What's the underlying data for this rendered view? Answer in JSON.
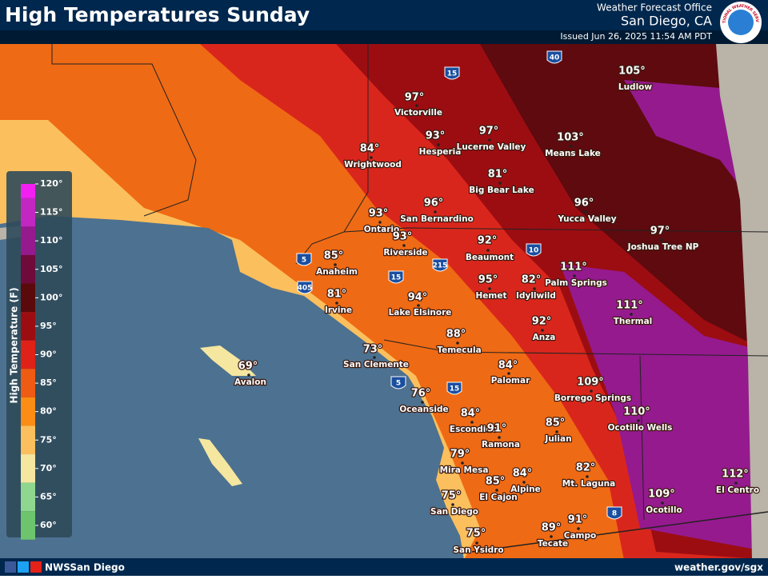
{
  "header": {
    "title": "High Temperatures Sunday",
    "office": "Weather Forecast Office",
    "location": "San Diego, CA",
    "issued": "Issued Jun 26, 2025 11:54 AM PDT",
    "logo": "NATIONAL WEATHER SERVICE"
  },
  "legend": {
    "title": "High Temperature (F)",
    "ticks": [
      "120°",
      "115°",
      "110°",
      "105°",
      "100°",
      "95°",
      "90°",
      "85°",
      "80°",
      "75°",
      "70°",
      "65°",
      "60°"
    ],
    "colors": [
      "#f21ff2",
      "#c227c2",
      "#951a8e",
      "#6e0b3a",
      "#5a0a0a",
      "#9c0d12",
      "#de2218",
      "#ef5b12",
      "#fb8c14",
      "#fbbf5d",
      "#f5e6a0",
      "#8fd68f",
      "#6cc46c"
    ]
  },
  "cities": [
    {
      "name": "Victorville",
      "temp": "97°"
    },
    {
      "name": "Hesperia",
      "temp": "93°"
    },
    {
      "name": "Lucerne Valley",
      "temp": "97°"
    },
    {
      "name": "Means Lake",
      "temp": "103°"
    },
    {
      "name": "Ludlow",
      "temp": "105°"
    },
    {
      "name": "Wrightwood",
      "temp": "84°"
    },
    {
      "name": "Big Bear Lake",
      "temp": "81°"
    },
    {
      "name": "San Bernardino",
      "temp": "96°"
    },
    {
      "name": "Yucca Valley",
      "temp": "96°"
    },
    {
      "name": "Ontario",
      "temp": "93°"
    },
    {
      "name": "Riverside",
      "temp": "93°"
    },
    {
      "name": "Beaumont",
      "temp": "92°"
    },
    {
      "name": "Joshua Tree NP",
      "temp": "97°"
    },
    {
      "name": "Anaheim",
      "temp": "85°"
    },
    {
      "name": "Palm Springs",
      "temp": "111°"
    },
    {
      "name": "Hemet",
      "temp": "95°"
    },
    {
      "name": "Idyllwild",
      "temp": "82°"
    },
    {
      "name": "Irvine",
      "temp": "81°"
    },
    {
      "name": "Lake Elsinore",
      "temp": "94°"
    },
    {
      "name": "Thermal",
      "temp": "111°"
    },
    {
      "name": "Anza",
      "temp": "92°"
    },
    {
      "name": "Temecula",
      "temp": "88°"
    },
    {
      "name": "San Clemente",
      "temp": "73°"
    },
    {
      "name": "Avalon",
      "temp": "69°"
    },
    {
      "name": "Palomar",
      "temp": "84°"
    },
    {
      "name": "Borrego Springs",
      "temp": "109°"
    },
    {
      "name": "Oceanside",
      "temp": "76°"
    },
    {
      "name": "Ocotillo Wells",
      "temp": "110°"
    },
    {
      "name": "Escondido",
      "temp": "84°"
    },
    {
      "name": "Julian",
      "temp": "85°"
    },
    {
      "name": "Ramona",
      "temp": "91°"
    },
    {
      "name": "Mira Mesa",
      "temp": "79°"
    },
    {
      "name": "Mt. Laguna",
      "temp": "82°"
    },
    {
      "name": "Alpine",
      "temp": "84°"
    },
    {
      "name": "El Cajon",
      "temp": "85°"
    },
    {
      "name": "El Centro",
      "temp": "112°"
    },
    {
      "name": "Ocotillo",
      "temp": "109°"
    },
    {
      "name": "San Diego",
      "temp": "75°"
    },
    {
      "name": "Campo",
      "temp": "91°"
    },
    {
      "name": "Tecate",
      "temp": "89°"
    },
    {
      "name": "San Ysidro",
      "temp": "75°"
    }
  ],
  "highways": [
    "15",
    "40",
    "5",
    "405",
    "15",
    "215",
    "10",
    "5",
    "15",
    "8"
  ],
  "footer": {
    "social": "NWSSan Diego",
    "url": "weather.gov/sgx"
  }
}
